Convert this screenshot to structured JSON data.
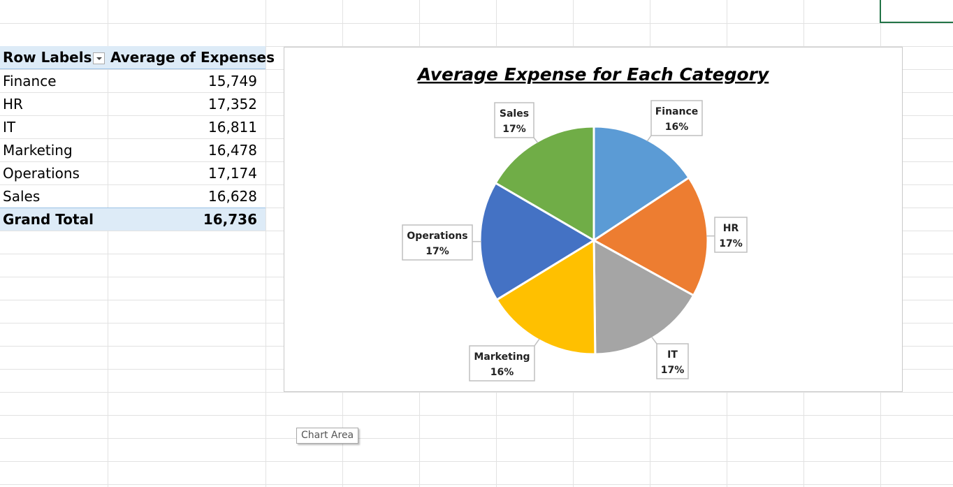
{
  "pivot": {
    "header": {
      "row_labels": "Row Labels",
      "value_header": "Average of Expenses"
    },
    "rows": [
      {
        "label": "Finance",
        "value": "15,749"
      },
      {
        "label": "HR",
        "value": "17,352"
      },
      {
        "label": "IT",
        "value": "16,811"
      },
      {
        "label": "Marketing",
        "value": "16,478"
      },
      {
        "label": "Operations",
        "value": "17,174"
      },
      {
        "label": "Sales",
        "value": "16,628"
      }
    ],
    "total": {
      "label": "Grand Total",
      "value": "16,736"
    },
    "filter_icon": "dropdown-arrow-icon"
  },
  "chart_data": {
    "type": "pie",
    "title": "Average Expense for Each Category",
    "categories": [
      "Finance",
      "HR",
      "IT",
      "Marketing",
      "Operations",
      "Sales"
    ],
    "values": [
      15749,
      17352,
      16811,
      16478,
      17174,
      16628
    ],
    "percent_labels": [
      "16%",
      "17%",
      "17%",
      "16%",
      "17%",
      "17%"
    ],
    "colors": [
      "#5b9bd5",
      "#ed7d31",
      "#a5a5a5",
      "#ffc000",
      "#4472c4",
      "#70ad47"
    ],
    "legend": "none",
    "data_labels": "callout"
  },
  "tooltip": {
    "text": "Chart Area"
  },
  "colors": {
    "pivot_header_bg": "#ddebf7",
    "selection_border": "#217346"
  }
}
